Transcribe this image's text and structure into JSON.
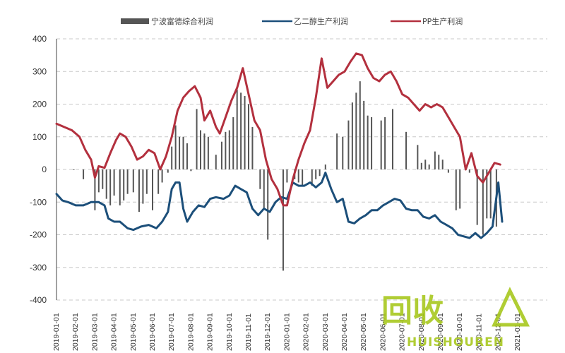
{
  "chart_data": {
    "type": "bar+line",
    "title": "",
    "xlabel": "",
    "ylabel": "",
    "ylim": [
      -400,
      400
    ],
    "yticks": [
      400,
      300,
      200,
      100,
      0,
      -100,
      -200,
      -300,
      -400
    ],
    "grid": "horizontal-dashed",
    "legend_position": "top",
    "x_tick_labels": [
      "2019-01-01",
      "2019-02-01",
      "2019-03-01",
      "2019-04-01",
      "2019-05-01",
      "2019-06-01",
      "2019-07-01",
      "2019-08-01",
      "2019-09-01",
      "2019-10-01",
      "2019-11-01",
      "2019-12-01",
      "2020-01-01",
      "2020-02-01",
      "2020-03-01",
      "2020-04-01",
      "2020-05-01",
      "2020-06-01",
      "2020-07-01",
      "2020-08-01",
      "2020-09-01",
      "2020-10-01",
      "2020-11-01",
      "2020-12-01",
      "2021-01-01"
    ],
    "series": [
      {
        "name": "宁波富德综合利润",
        "kind": "bar",
        "color": "#555555",
        "points": [
          [
            0.9,
            -2
          ],
          [
            1.4,
            -30
          ],
          [
            2.0,
            -125
          ],
          [
            2.2,
            -70
          ],
          [
            2.4,
            -60
          ],
          [
            2.6,
            -90
          ],
          [
            2.8,
            -110
          ],
          [
            3.0,
            -80
          ],
          [
            3.3,
            -110
          ],
          [
            3.5,
            -95
          ],
          [
            3.7,
            -75
          ],
          [
            4.0,
            -70
          ],
          [
            4.3,
            -130
          ],
          [
            4.5,
            -105
          ],
          [
            4.7,
            -75
          ],
          [
            5.0,
            -125
          ],
          [
            5.3,
            -75
          ],
          [
            5.5,
            -40
          ],
          [
            5.8,
            -10
          ],
          [
            6.0,
            70
          ],
          [
            6.2,
            135
          ],
          [
            6.4,
            100
          ],
          [
            6.6,
            100
          ],
          [
            6.8,
            80
          ],
          [
            7.0,
            -5
          ],
          [
            7.3,
            185
          ],
          [
            7.5,
            120
          ],
          [
            7.7,
            110
          ],
          [
            7.9,
            100
          ],
          [
            8.3,
            45
          ],
          [
            8.6,
            85
          ],
          [
            8.8,
            115
          ],
          [
            9.0,
            120
          ],
          [
            9.2,
            160
          ],
          [
            9.4,
            245
          ],
          [
            9.6,
            235
          ],
          [
            9.8,
            225
          ],
          [
            10.0,
            200
          ],
          [
            10.2,
            130
          ],
          [
            10.6,
            -60
          ],
          [
            10.8,
            -120
          ],
          [
            11.0,
            -215
          ],
          [
            11.8,
            -310
          ],
          [
            12.0,
            -40
          ],
          [
            12.4,
            -30
          ],
          [
            12.6,
            -40
          ],
          [
            12.8,
            -50
          ],
          [
            13.3,
            -50
          ],
          [
            13.5,
            -30
          ],
          [
            13.7,
            -20
          ],
          [
            14.0,
            15
          ],
          [
            14.6,
            110
          ],
          [
            14.9,
            100
          ],
          [
            15.2,
            150
          ],
          [
            15.4,
            205
          ],
          [
            15.6,
            235
          ],
          [
            15.8,
            270
          ],
          [
            16.0,
            210
          ],
          [
            16.2,
            165
          ],
          [
            16.4,
            160
          ],
          [
            16.9,
            150
          ],
          [
            17.1,
            160
          ],
          [
            17.5,
            185
          ],
          [
            18.2,
            115
          ],
          [
            18.8,
            75
          ],
          [
            19.0,
            20
          ],
          [
            19.2,
            30
          ],
          [
            19.4,
            15
          ],
          [
            19.7,
            55
          ],
          [
            19.9,
            45
          ],
          [
            20.1,
            30
          ],
          [
            20.4,
            -10
          ],
          [
            20.8,
            -125
          ],
          [
            21.0,
            -120
          ],
          [
            21.5,
            -10
          ],
          [
            21.9,
            -170
          ],
          [
            22.2,
            -200
          ],
          [
            22.4,
            -150
          ],
          [
            22.6,
            -150
          ],
          [
            22.9,
            -175
          ]
        ]
      },
      {
        "name": "乙二醇生产利润",
        "kind": "line",
        "color": "#1c4f7a",
        "points": [
          [
            0.0,
            -75
          ],
          [
            0.3,
            -95
          ],
          [
            0.6,
            -100
          ],
          [
            1.0,
            -110
          ],
          [
            1.4,
            -110
          ],
          [
            1.8,
            -100
          ],
          [
            2.2,
            -100
          ],
          [
            2.5,
            -110
          ],
          [
            2.7,
            -150
          ],
          [
            3.0,
            -160
          ],
          [
            3.3,
            -160
          ],
          [
            3.7,
            -180
          ],
          [
            4.0,
            -185
          ],
          [
            4.4,
            -175
          ],
          [
            4.8,
            -170
          ],
          [
            5.2,
            -180
          ],
          [
            5.5,
            -160
          ],
          [
            5.8,
            -130
          ],
          [
            6.0,
            -60
          ],
          [
            6.2,
            -40
          ],
          [
            6.4,
            -40
          ],
          [
            6.6,
            -120
          ],
          [
            6.8,
            -160
          ],
          [
            7.1,
            -130
          ],
          [
            7.4,
            -110
          ],
          [
            7.7,
            -115
          ],
          [
            8.0,
            -90
          ],
          [
            8.3,
            -85
          ],
          [
            8.7,
            -90
          ],
          [
            9.0,
            -80
          ],
          [
            9.3,
            -50
          ],
          [
            9.6,
            -60
          ],
          [
            9.9,
            -70
          ],
          [
            10.2,
            -120
          ],
          [
            10.5,
            -140
          ],
          [
            10.8,
            -120
          ],
          [
            11.1,
            -130
          ],
          [
            11.4,
            -100
          ],
          [
            11.7,
            -85
          ],
          [
            12.0,
            -90
          ],
          [
            12.3,
            -40
          ],
          [
            12.6,
            -50
          ],
          [
            12.9,
            -50
          ],
          [
            13.2,
            -40
          ],
          [
            13.5,
            -55
          ],
          [
            13.8,
            -40
          ],
          [
            14.0,
            -10
          ],
          [
            14.3,
            -60
          ],
          [
            14.6,
            -100
          ],
          [
            14.9,
            -90
          ],
          [
            15.2,
            -160
          ],
          [
            15.5,
            -165
          ],
          [
            15.8,
            -150
          ],
          [
            16.1,
            -140
          ],
          [
            16.4,
            -125
          ],
          [
            16.7,
            -125
          ],
          [
            17.0,
            -110
          ],
          [
            17.3,
            -100
          ],
          [
            17.6,
            -90
          ],
          [
            17.9,
            -95
          ],
          [
            18.2,
            -120
          ],
          [
            18.5,
            -125
          ],
          [
            18.8,
            -125
          ],
          [
            19.1,
            -145
          ],
          [
            19.4,
            -150
          ],
          [
            19.7,
            -140
          ],
          [
            20.0,
            -160
          ],
          [
            20.3,
            -170
          ],
          [
            20.6,
            -180
          ],
          [
            20.9,
            -200
          ],
          [
            21.2,
            -205
          ],
          [
            21.5,
            -210
          ],
          [
            21.8,
            -195
          ],
          [
            22.1,
            -210
          ],
          [
            22.4,
            -195
          ],
          [
            22.7,
            -175
          ],
          [
            23.0,
            -40
          ],
          [
            23.2,
            -160
          ]
        ]
      },
      {
        "name": "PP生产利润",
        "kind": "line",
        "color": "#b3303e",
        "points": [
          [
            0.0,
            140
          ],
          [
            0.4,
            130
          ],
          [
            0.8,
            120
          ],
          [
            1.2,
            100
          ],
          [
            1.5,
            60
          ],
          [
            1.8,
            30
          ],
          [
            2.0,
            -25
          ],
          [
            2.2,
            10
          ],
          [
            2.5,
            5
          ],
          [
            2.8,
            50
          ],
          [
            3.1,
            90
          ],
          [
            3.3,
            110
          ],
          [
            3.6,
            100
          ],
          [
            3.9,
            70
          ],
          [
            4.2,
            30
          ],
          [
            4.5,
            40
          ],
          [
            4.8,
            60
          ],
          [
            5.1,
            50
          ],
          [
            5.4,
            0
          ],
          [
            5.7,
            40
          ],
          [
            6.0,
            100
          ],
          [
            6.3,
            180
          ],
          [
            6.6,
            220
          ],
          [
            6.9,
            240
          ],
          [
            7.2,
            255
          ],
          [
            7.5,
            220
          ],
          [
            7.7,
            150
          ],
          [
            8.0,
            180
          ],
          [
            8.3,
            130
          ],
          [
            8.5,
            110
          ],
          [
            8.8,
            160
          ],
          [
            9.1,
            210
          ],
          [
            9.4,
            250
          ],
          [
            9.7,
            310
          ],
          [
            10.0,
            230
          ],
          [
            10.3,
            150
          ],
          [
            10.6,
            120
          ],
          [
            10.9,
            30
          ],
          [
            11.2,
            -30
          ],
          [
            11.5,
            -60
          ],
          [
            11.8,
            -110
          ],
          [
            12.0,
            -110
          ],
          [
            12.3,
            -30
          ],
          [
            12.6,
            30
          ],
          [
            12.9,
            80
          ],
          [
            13.2,
            120
          ],
          [
            13.5,
            220
          ],
          [
            13.8,
            340
          ],
          [
            14.1,
            250
          ],
          [
            14.4,
            270
          ],
          [
            14.7,
            290
          ],
          [
            15.0,
            300
          ],
          [
            15.3,
            330
          ],
          [
            15.6,
            355
          ],
          [
            15.9,
            350
          ],
          [
            16.2,
            310
          ],
          [
            16.5,
            280
          ],
          [
            16.8,
            270
          ],
          [
            17.1,
            290
          ],
          [
            17.4,
            300
          ],
          [
            17.7,
            270
          ],
          [
            18.0,
            230
          ],
          [
            18.3,
            220
          ],
          [
            18.6,
            200
          ],
          [
            18.9,
            180
          ],
          [
            19.2,
            200
          ],
          [
            19.5,
            190
          ],
          [
            19.8,
            200
          ],
          [
            20.1,
            190
          ],
          [
            20.4,
            160
          ],
          [
            20.7,
            130
          ],
          [
            21.0,
            100
          ],
          [
            21.3,
            0
          ],
          [
            21.6,
            50
          ],
          [
            21.9,
            -20
          ],
          [
            22.2,
            -40
          ],
          [
            22.5,
            -10
          ],
          [
            22.8,
            20
          ],
          [
            23.1,
            15
          ]
        ]
      }
    ]
  },
  "watermark": {
    "big_text": "回收",
    "small_text": "HUISHOUREN"
  }
}
